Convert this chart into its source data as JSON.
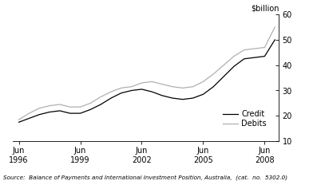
{
  "title_right": "$billion",
  "ylim": [
    10,
    60
  ],
  "yticks": [
    10,
    20,
    30,
    40,
    50,
    60
  ],
  "source_text": "Source:  Balance of Payments and International Investment Position, Australia,  (cat.  no.  5302.0)",
  "legend_labels": [
    "Credit",
    "Debits"
  ],
  "credit_color": "#000000",
  "debit_color": "#b0b0b0",
  "background_color": "#ffffff",
  "xtick_labels": [
    "Jun\n1996",
    "Jun\n1999",
    "Jun\n2002",
    "Jun\n2005",
    "Jun\n2008"
  ],
  "xtick_positions": [
    1996.5,
    1999.5,
    2002.5,
    2005.5,
    2008.5
  ],
  "xlim": [
    1996.2,
    2009.2
  ],
  "credit": [
    [
      1996.5,
      17.5
    ],
    [
      1997.0,
      19.0
    ],
    [
      1997.5,
      20.5
    ],
    [
      1998.0,
      21.5
    ],
    [
      1998.5,
      22.0
    ],
    [
      1999.0,
      21.0
    ],
    [
      1999.5,
      21.0
    ],
    [
      2000.0,
      22.5
    ],
    [
      2000.5,
      24.5
    ],
    [
      2001.0,
      27.0
    ],
    [
      2001.5,
      29.0
    ],
    [
      2002.0,
      30.0
    ],
    [
      2002.5,
      30.5
    ],
    [
      2003.0,
      29.5
    ],
    [
      2003.5,
      28.0
    ],
    [
      2004.0,
      27.0
    ],
    [
      2004.5,
      26.5
    ],
    [
      2005.0,
      27.0
    ],
    [
      2005.5,
      28.5
    ],
    [
      2006.0,
      31.5
    ],
    [
      2006.5,
      35.5
    ],
    [
      2007.0,
      39.5
    ],
    [
      2007.5,
      42.5
    ],
    [
      2008.0,
      43.0
    ],
    [
      2008.5,
      43.5
    ],
    [
      2009.0,
      50.0
    ]
  ],
  "debits": [
    [
      1996.5,
      18.5
    ],
    [
      1997.0,
      21.0
    ],
    [
      1997.5,
      23.0
    ],
    [
      1998.0,
      24.0
    ],
    [
      1998.5,
      24.5
    ],
    [
      1999.0,
      23.5
    ],
    [
      1999.5,
      23.5
    ],
    [
      2000.0,
      25.0
    ],
    [
      2000.5,
      27.5
    ],
    [
      2001.0,
      29.5
    ],
    [
      2001.5,
      31.0
    ],
    [
      2002.0,
      31.5
    ],
    [
      2002.5,
      33.0
    ],
    [
      2003.0,
      33.5
    ],
    [
      2003.5,
      32.5
    ],
    [
      2004.0,
      31.5
    ],
    [
      2004.5,
      31.0
    ],
    [
      2005.0,
      31.5
    ],
    [
      2005.5,
      33.5
    ],
    [
      2006.0,
      36.5
    ],
    [
      2006.5,
      40.0
    ],
    [
      2007.0,
      43.5
    ],
    [
      2007.5,
      46.0
    ],
    [
      2008.0,
      46.5
    ],
    [
      2008.5,
      47.0
    ],
    [
      2009.0,
      55.0
    ]
  ]
}
